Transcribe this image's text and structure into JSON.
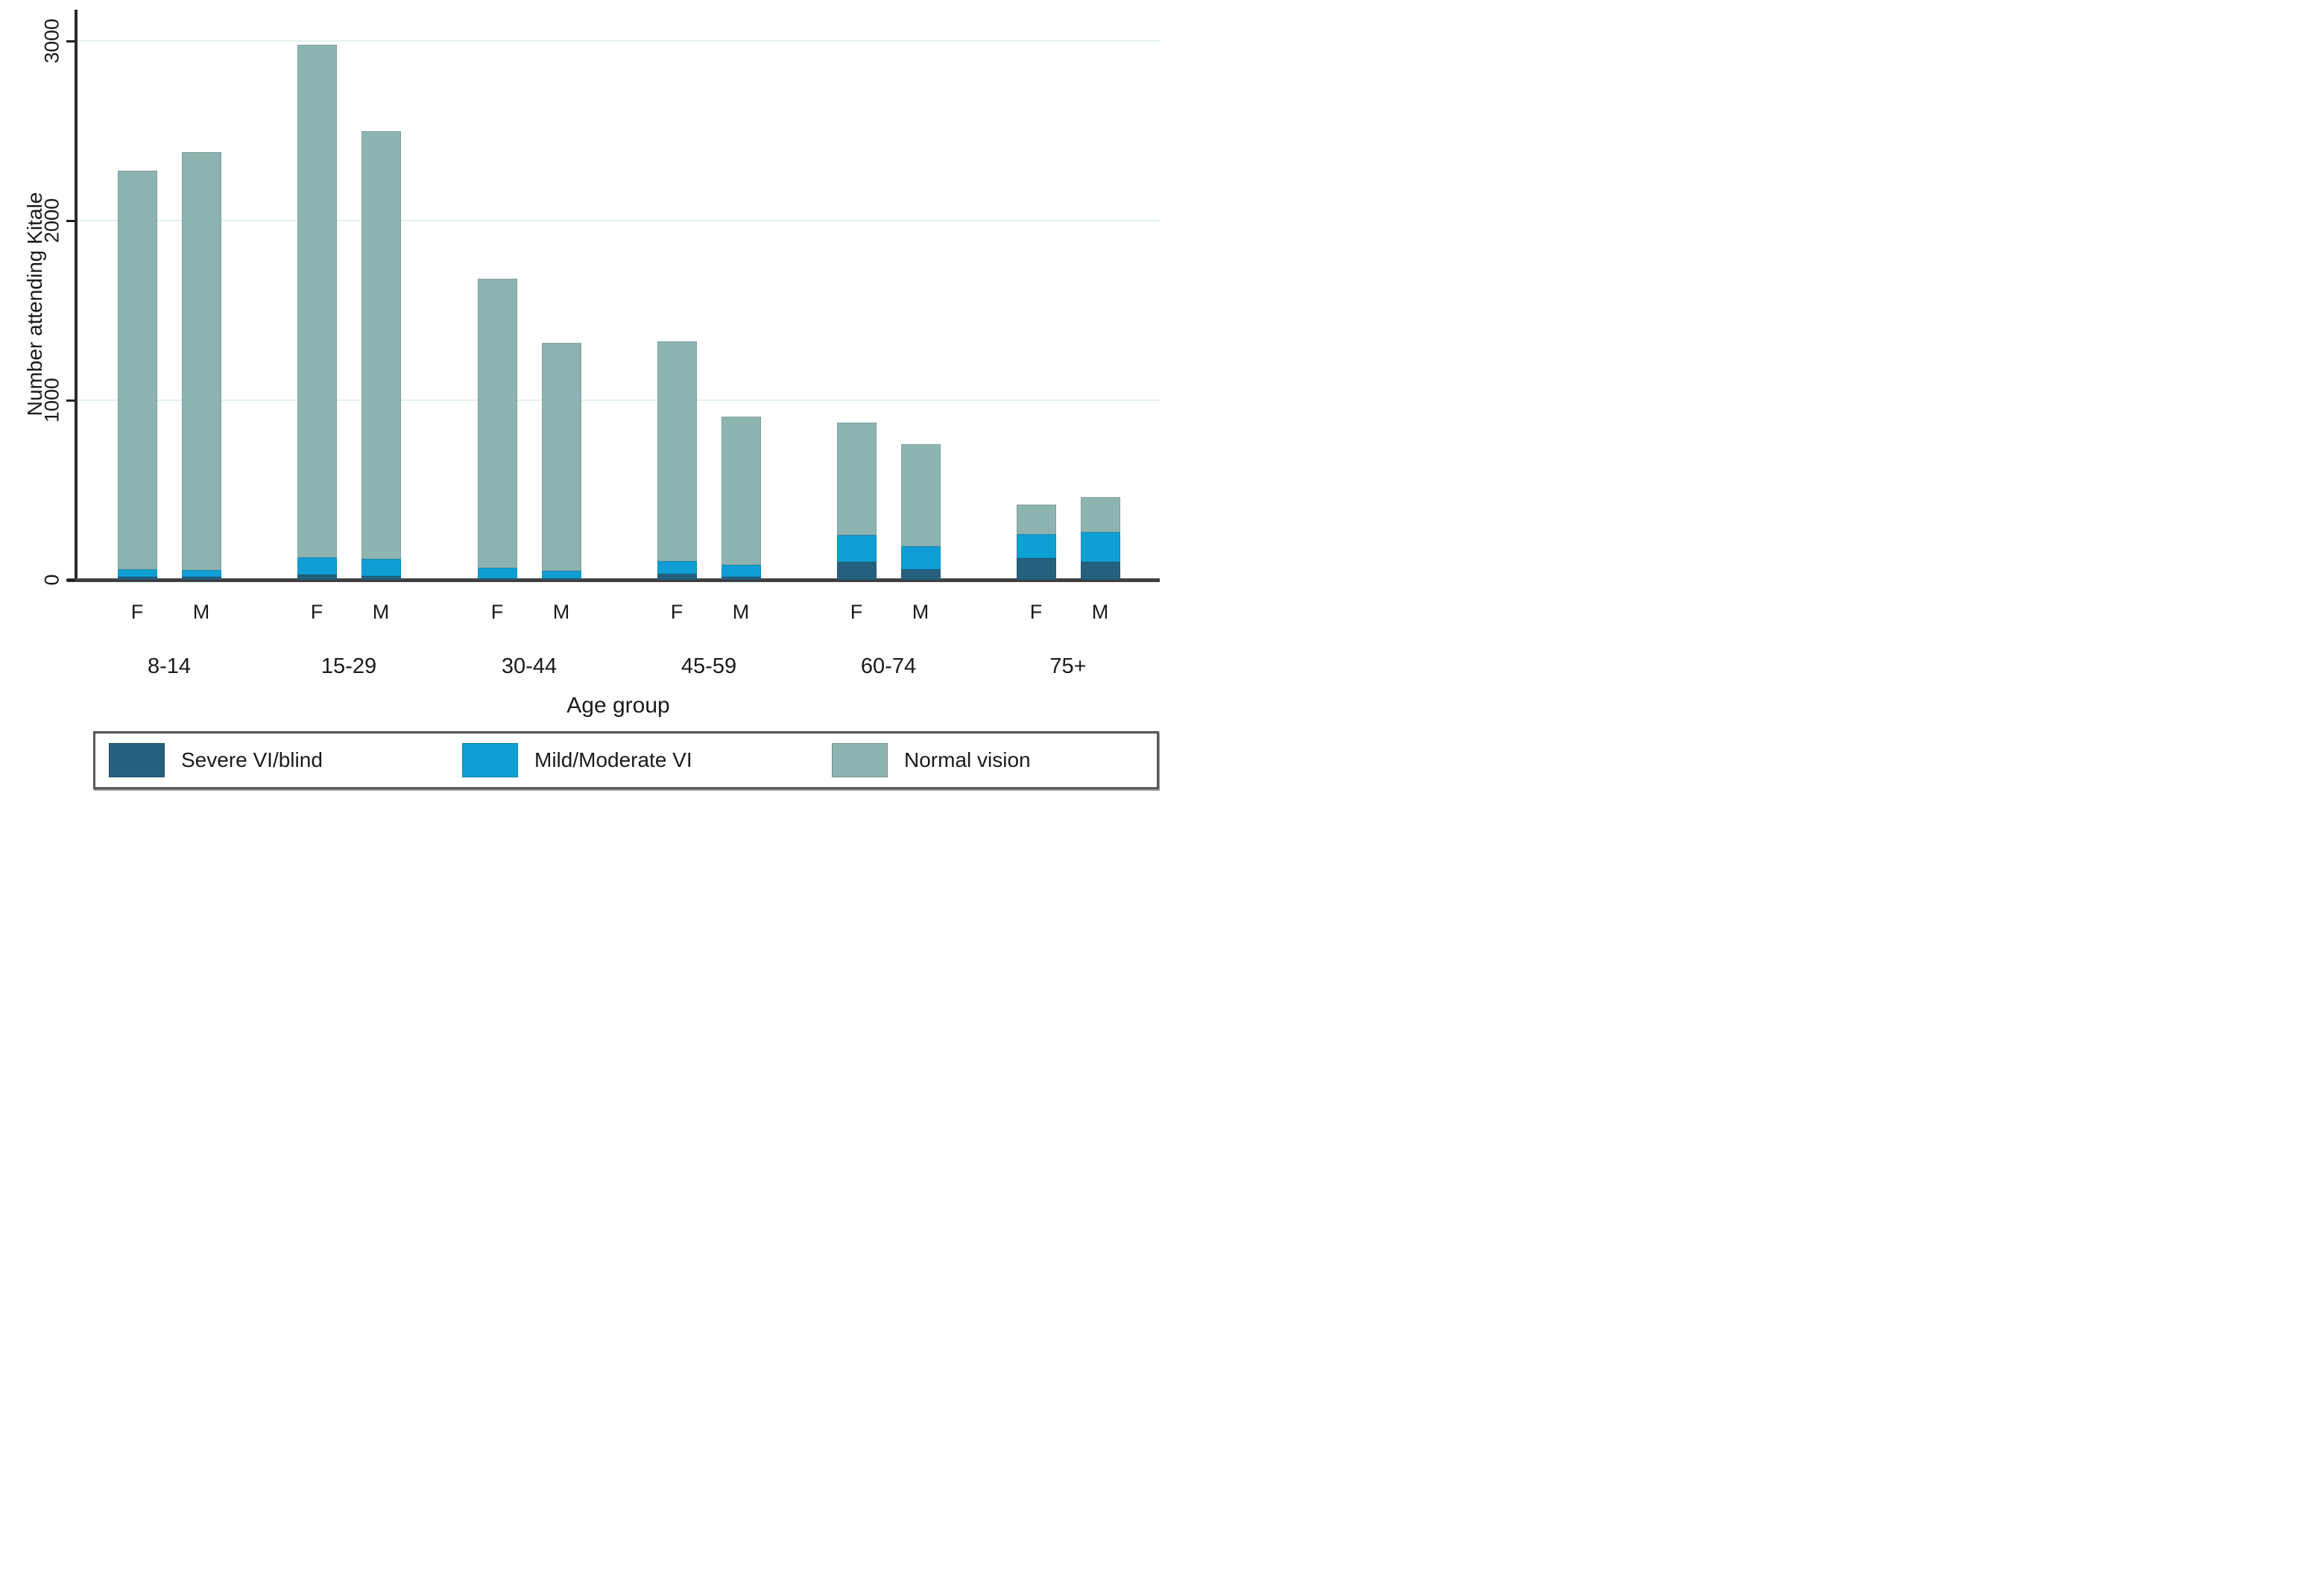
{
  "chart_data": {
    "type": "bar",
    "stacked": true,
    "title": "",
    "ylabel": "Number attending Kitale",
    "xlabel": "Age group",
    "ylim": [
      0,
      3200
    ],
    "yticks": [
      0,
      1000,
      2000,
      3000
    ],
    "grid": true,
    "legend_position": "bottom",
    "categories": [
      "8-14",
      "15-29",
      "30-44",
      "45-59",
      "60-74",
      "75+"
    ],
    "sex_labels": [
      "F",
      "M"
    ],
    "series": [
      {
        "name": "Severe VI/blind",
        "color": "#26607f"
      },
      {
        "name": "Mild/Moderate VI",
        "color": "#0f9fd5"
      },
      {
        "name": "Normal vision",
        "color": "#8db4b0"
      }
    ],
    "bars": [
      {
        "group": "8-14",
        "sex": "F",
        "severe": 15,
        "mild": 45,
        "normal": 2220,
        "total": 2280
      },
      {
        "group": "8-14",
        "sex": "M",
        "severe": 15,
        "mild": 40,
        "normal": 2325,
        "total": 2380
      },
      {
        "group": "15-29",
        "sex": "F",
        "severe": 30,
        "mild": 95,
        "normal": 2855,
        "total": 2980
      },
      {
        "group": "15-29",
        "sex": "M",
        "severe": 20,
        "mild": 95,
        "normal": 2385,
        "total": 2500
      },
      {
        "group": "30-44",
        "sex": "F",
        "severe": 10,
        "mild": 55,
        "normal": 1610,
        "total": 1675
      },
      {
        "group": "30-44",
        "sex": "M",
        "severe": 10,
        "mild": 40,
        "normal": 1270,
        "total": 1320
      },
      {
        "group": "45-59",
        "sex": "F",
        "severe": 35,
        "mild": 70,
        "normal": 1225,
        "total": 1330
      },
      {
        "group": "45-59",
        "sex": "M",
        "severe": 15,
        "mild": 70,
        "normal": 825,
        "total": 910
      },
      {
        "group": "60-74",
        "sex": "F",
        "severe": 100,
        "mild": 150,
        "normal": 625,
        "total": 875
      },
      {
        "group": "60-74",
        "sex": "M",
        "severe": 60,
        "mild": 125,
        "normal": 570,
        "total": 755
      },
      {
        "group": "75+",
        "sex": "F",
        "severe": 120,
        "mild": 135,
        "normal": 165,
        "total": 420
      },
      {
        "group": "75+",
        "sex": "M",
        "severe": 100,
        "mild": 165,
        "normal": 195,
        "total": 460
      }
    ],
    "colors": {
      "axis": "#2b2b2b",
      "x_axis": "#404040",
      "gridline": "#e4f1f1",
      "background": "#ffffff"
    }
  }
}
